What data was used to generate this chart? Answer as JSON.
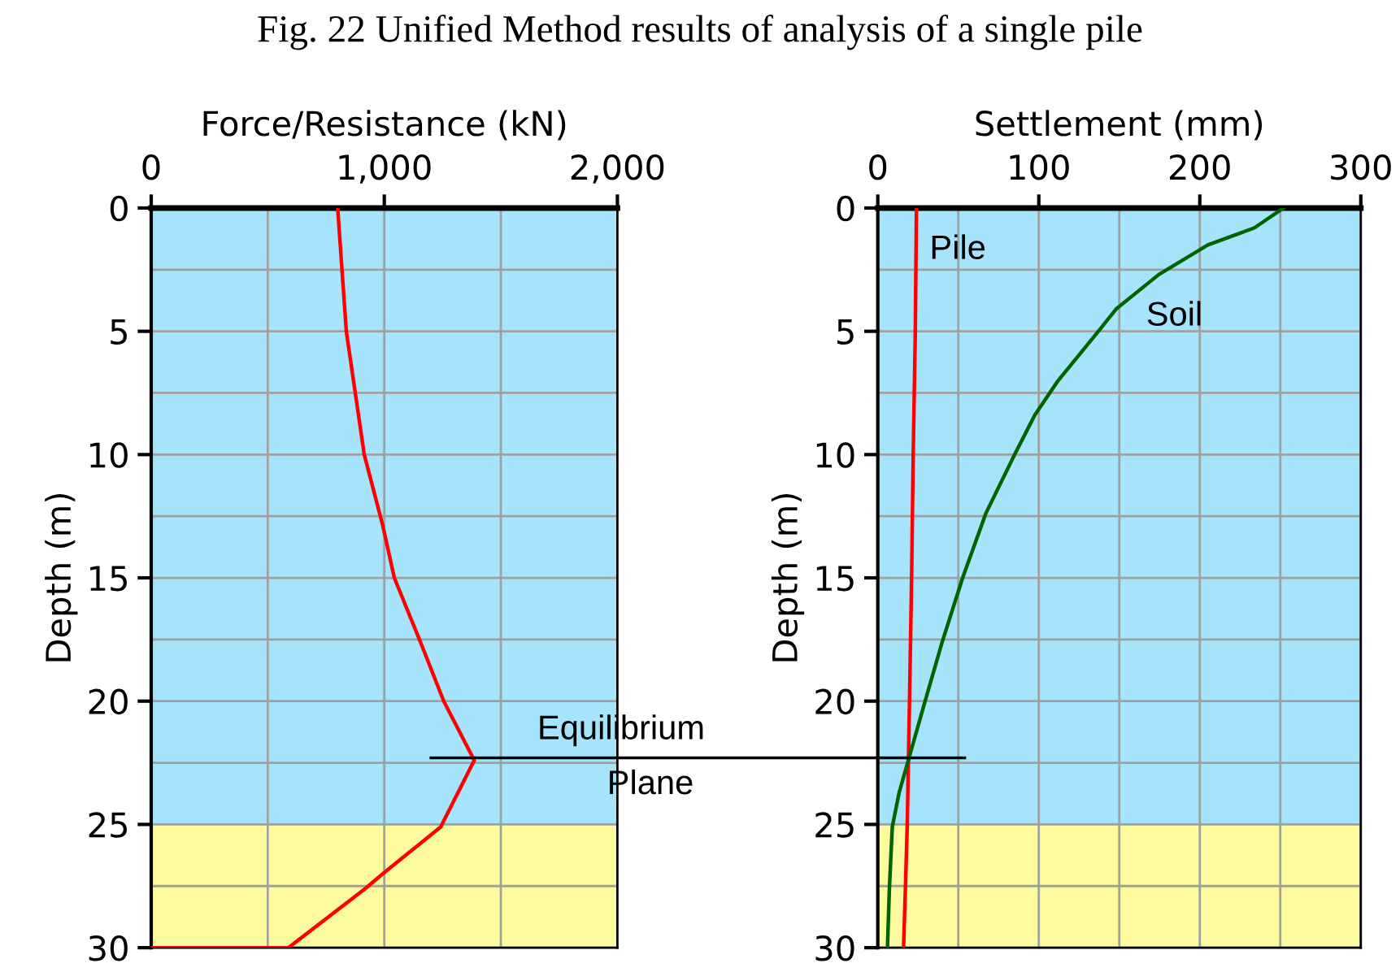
{
  "chart_data": [
    {
      "type": "line",
      "title": "Fig. 22 Unified Method results of analysis of a single pile",
      "xlabel": "Force/Resistance (kN)",
      "ylabel": "Depth (m)",
      "xlim": [
        0,
        2000
      ],
      "ylim": [
        30,
        0
      ],
      "xticks": [
        0,
        {
          "value": 500,
          "label": null
        },
        {
          "value": 1000,
          "label": "1,000"
        },
        {
          "value": 1500,
          "label": null
        },
        {
          "value": 2000,
          "label": "2,000"
        }
      ],
      "yticks": [
        0,
        {
          "value": 2.5,
          "label": null
        },
        5,
        {
          "value": 7.5,
          "label": null
        },
        10,
        {
          "value": 12.5,
          "label": null
        },
        15,
        {
          "value": 17.5,
          "label": null
        },
        20,
        {
          "value": 22.5,
          "label": null
        },
        25,
        {
          "value": 27.5,
          "label": null
        },
        30
      ],
      "grid": true,
      "bands": [
        {
          "axis": "y",
          "from": 0,
          "to": 25,
          "color": "#a6e4fc"
        },
        {
          "axis": "y",
          "from": 25,
          "to": 30,
          "color": "#fdfb9e"
        }
      ],
      "ref_lines": [
        {
          "axis": "y",
          "value": 22.3,
          "label": "Equilibrium\nPlane",
          "color": "#000000"
        }
      ],
      "series": [
        {
          "color": "#ff0000",
          "x": [
            800,
            837,
            914,
            994,
            1043,
            1155,
            1255,
            1386,
            1354,
            1242,
            994,
            919,
            589,
            0
          ],
          "values": [
            0,
            5,
            10,
            12.9,
            15,
            17.6,
            20,
            22.4,
            23,
            25.1,
            27,
            27.6,
            30,
            30
          ]
        }
      ]
    },
    {
      "type": "line",
      "xlabel": "Settlement (mm)",
      "ylabel": "Depth (m)",
      "xlim": [
        0,
        300
      ],
      "ylim": [
        30,
        0
      ],
      "xticks": [
        0,
        {
          "value": 50,
          "label": null
        },
        100,
        {
          "value": 150,
          "label": null
        },
        200,
        {
          "value": 250,
          "label": null
        },
        300
      ],
      "yticks": [
        0,
        {
          "value": 2.5,
          "label": null
        },
        5,
        {
          "value": 7.5,
          "label": null
        },
        10,
        {
          "value": 12.5,
          "label": null
        },
        15,
        {
          "value": 17.5,
          "label": null
        },
        20,
        {
          "value": 22.5,
          "label": null
        },
        25,
        {
          "value": 27.5,
          "label": null
        },
        30
      ],
      "grid": true,
      "bands": [
        {
          "axis": "y",
          "from": 0,
          "to": 25,
          "color": "#a6e4fc"
        },
        {
          "axis": "y",
          "from": 25,
          "to": 30,
          "color": "#fdfb9e"
        }
      ],
      "ref_lines": [
        {
          "axis": "y",
          "value": 22.3,
          "color": "#000000"
        }
      ],
      "series": [
        {
          "name": "Pile",
          "color": "#ff0000",
          "x": [
            24,
            23.3,
            22,
            21,
            19.7,
            19,
            18.3,
            17.2,
            16
          ],
          "values": [
            0,
            5,
            10,
            15,
            20,
            22.5,
            25,
            27.5,
            30
          ]
        },
        {
          "name": "Soil",
          "color": "#006400",
          "x": [
            252,
            234,
            205,
            174.5,
            148,
            137,
            112,
            97.5,
            85,
            67,
            52.7,
            40,
            29.4,
            19.4,
            13.3,
            9,
            7.2,
            6
          ],
          "values": [
            0,
            0.8,
            1.5,
            2.7,
            4.1,
            5,
            7,
            8.4,
            10,
            12.4,
            15,
            17.6,
            20,
            22.3,
            23.7,
            25.1,
            27.6,
            30
          ]
        }
      ]
    }
  ]
}
